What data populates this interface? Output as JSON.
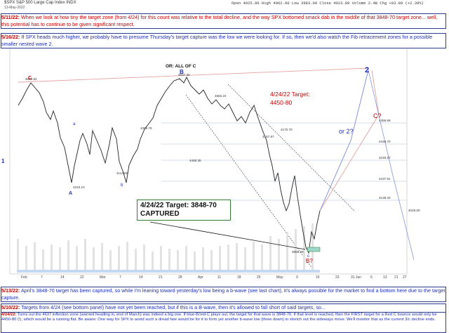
{
  "header": {
    "title": "$SPX S&P 500 Large Cap Index INDX",
    "date": "13-May-2022",
    "ohlc": "Open 4025.00  High 4062.00  Low 3983.00  Close 4023.89  Volume 2.4B  Chg +93.80 (+2.39%)"
  },
  "notes": {
    "n1": {
      "date": "5/11/22:",
      "text": "When we look at how tiny the target zone (from 4/24) for this count was relative to the total decline, and the way SPX bottomed smack dab in the middle of that 3848-70 target zone... well, this potential has to continue to be given significant respect."
    },
    "n2": {
      "date": "5/16/22:",
      "text": "If SPX heads much higher, we probably have to presume Thursday's target capture was the low we were looking for.  If so, then we'd also watch the Fib retracement zones for a possible smaller nested wave 2."
    },
    "n3": {
      "date": "5/13/22:",
      "text": "April's 3848-70 target has been captured, so while I'm leaning toward yesterday's low being a b-wave (see last chart), it's always possible for the market to find a bottom here due to the target capture."
    },
    "n4": {
      "date": "5/10/22:",
      "text": "Targets from 4/24 (see bottom panel) have not yet been reached, but if this is a B-wave, then it's allowed to fall short of said targets, so..."
    },
    "n5": {
      "date": "4/24/22:",
      "text": "Turns out the 4637 inflection zone (warned heading in, end of March) was indeed a big one.  If blue-B/red-C plays out, the target for that wave is 3848-70.  If that level is reached, then the FIRST target for a Red C bounce would only be 4450-80 (!), which would be a running flat.  Be aware:  One way for SPX to avoid such a dread fate would be for it to form yet another b-wave low (three down) to stretch out the sideways move.  We'll monitor that as the current 3/c decline ends."
    },
    "n6": {
      "date": "4/1/22:",
      "text": "This is one alternate count (for now) -- drew this up so everyone would know what \"a more complex correction than the straightforward C wave\" might look like, and to illustrate why the three waves up to 4637 is an inflection zone."
    }
  },
  "chart": {
    "labels": {
      "or_all_of_c": "OR: ALL OF C",
      "wave_b_top": "B",
      "wave_a_low": "A",
      "wave_a_small": "a",
      "wave_b_small": "b",
      "wave_c_red": "C",
      "wave_c_red_q": "C?",
      "wave_2_blue": "2",
      "wave_or2": "or 2?",
      "wave_b_q": "B?",
      "wave_c_small": "c",
      "wave_1_left": "1",
      "target_450": "4/24/22 Target:",
      "target_450_val": "4450-80",
      "target_captured_1": "4/24/22 Target: 3848-70",
      "target_captured_2": "CAPTURED"
    },
    "x_axis": [
      "Feb",
      "7",
      "14",
      "22",
      "Mar",
      "7",
      "14",
      "21",
      "28",
      "Apr",
      "11",
      "18",
      "25",
      "May",
      "9",
      "16",
      "23",
      "31 Jun",
      "6",
      "13",
      "21",
      "27"
    ],
    "fib_levels": [
      "4456.68",
      "4348.70",
      "4246.27",
      "4197.91",
      "4138.33"
    ],
    "price_labels": [
      "4818.62",
      "4637.30",
      "4582.24",
      "4465.35",
      "4306.76",
      "4223.10",
      "4114.65",
      "4157.87",
      "4170.70",
      "3858.09",
      "4025.00"
    ]
  },
  "colors": {
    "note_border": "#2a3c8f",
    "date_red": "#c40000",
    "wave_blue": "#1f2fb5",
    "wave_red": "#c40000",
    "target_green": "#2e7d32",
    "fib_line": "#c8d4e6"
  }
}
